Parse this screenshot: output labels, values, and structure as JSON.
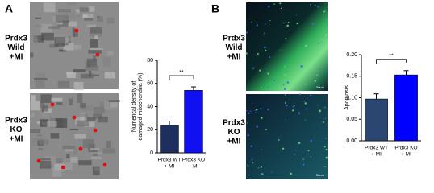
{
  "panels": [
    {
      "label": "A",
      "rows": [
        [
          "Prdx3",
          "Wild",
          "+MI"
        ],
        [
          "Prdx3",
          "KO",
          "+MI"
        ]
      ]
    },
    {
      "label": "B",
      "rows": [
        [
          "Prdx3",
          "Wild",
          "+MI"
        ],
        [
          "Prdx3",
          "KO",
          "+MI"
        ]
      ],
      "scale_labels": [
        "50um",
        "50um"
      ]
    }
  ],
  "chart_data": [
    {
      "type": "bar",
      "ylabel": [
        "Numerical density of",
        "damaged mitochondria (%)"
      ],
      "categories": [
        [
          "Prdx3 WT",
          "+ MI"
        ],
        [
          "Prdx3 KO",
          "+ MI"
        ]
      ],
      "values": [
        24,
        54
      ],
      "errors": [
        3.5,
        3
      ],
      "colors": [
        "#1c2f5e",
        "#1010f0"
      ],
      "ylim": [
        0,
        80
      ],
      "yticks": [
        0,
        20,
        40,
        60,
        80
      ],
      "annotation": "**"
    },
    {
      "type": "bar",
      "ylabel": [
        "Apoptosis"
      ],
      "categories": [
        [
          "Prdx3 WT",
          "+ MI"
        ],
        [
          "Prdx3 KO",
          "+ MI"
        ]
      ],
      "values": [
        0.097,
        0.153
      ],
      "errors": [
        0.012,
        0.01
      ],
      "colors": [
        "#2b4670",
        "#0000ff"
      ],
      "ylim": [
        0,
        0.2
      ],
      "yticks": [
        {
          "value": 0,
          "label": "0.00"
        },
        {
          "value": 0.05,
          "label": "0.05"
        },
        {
          "value": 0.1,
          "label": "0.10"
        },
        {
          "value": 0.15,
          "label": "0.15"
        },
        {
          "value": 0.2,
          "label": "0.20"
        }
      ],
      "annotation": "**"
    }
  ]
}
